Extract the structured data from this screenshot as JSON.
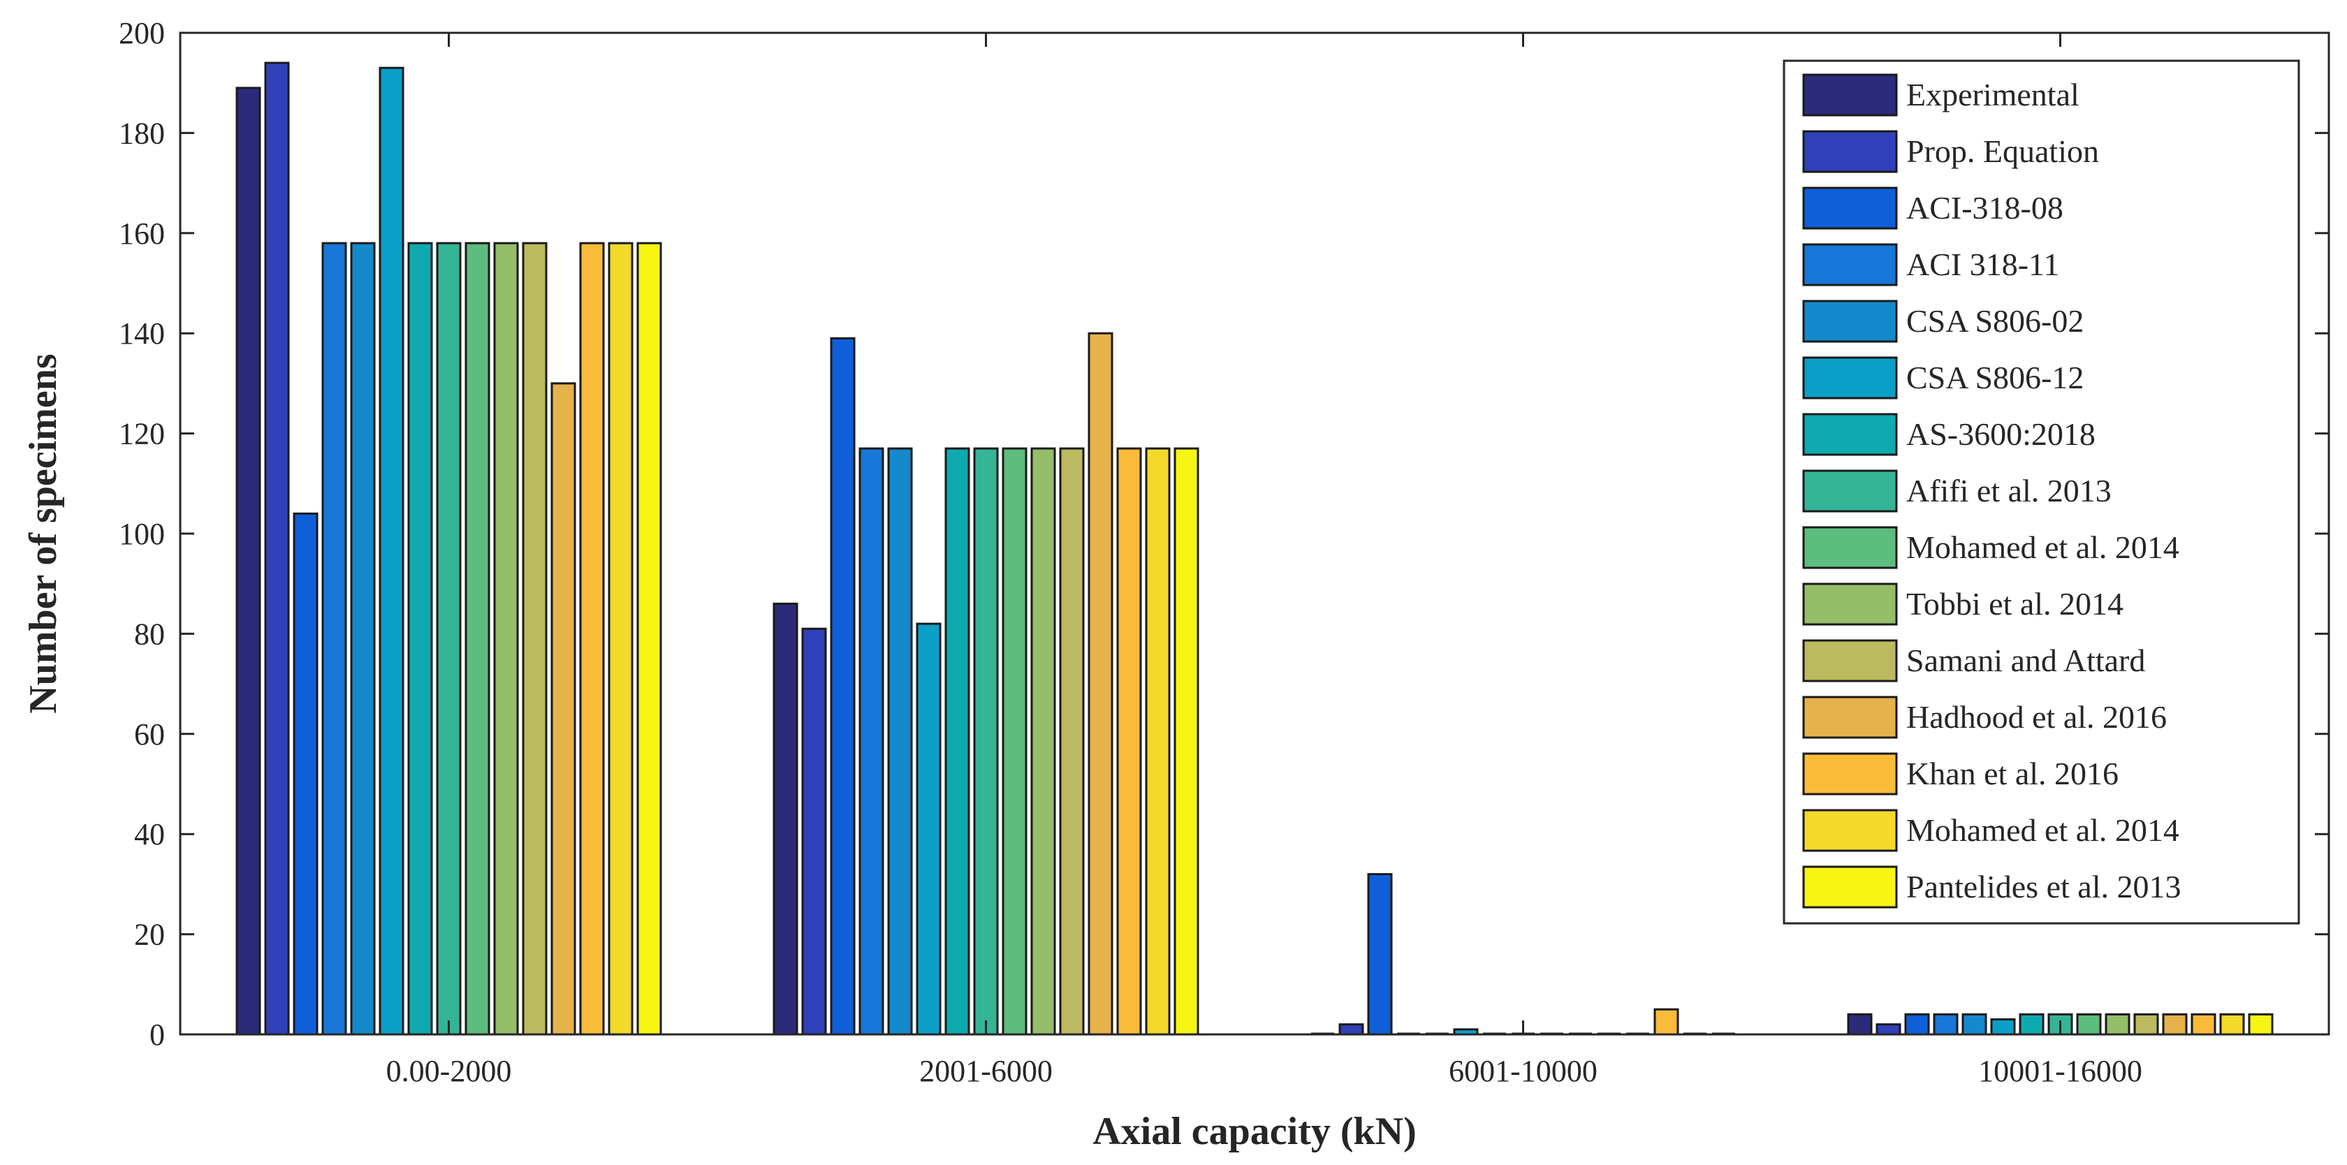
{
  "chart_data": {
    "type": "bar",
    "title": "",
    "xlabel": "Axial capacity (kN)",
    "ylabel": "Number of specimens",
    "ylim": [
      0,
      200
    ],
    "yticks": [
      "0",
      "20",
      "40",
      "60",
      "80",
      "100",
      "120",
      "140",
      "160",
      "180",
      "200"
    ],
    "grid": false,
    "legend_position": "top-right",
    "categories": [
      "0.00-2000",
      "2001-6000",
      "6001-10000",
      "10001-16000"
    ],
    "series": [
      {
        "name": "Experimental",
        "color": "#2b2a7b",
        "values": [
          189,
          86,
          0,
          4
        ]
      },
      {
        "name": "Prop. Equation",
        "color": "#3040b8",
        "values": [
          194,
          81,
          2,
          2
        ]
      },
      {
        "name": "ACI-318-08",
        "color": "#0f5fd8",
        "values": [
          104,
          139,
          32,
          4
        ]
      },
      {
        "name": "ACI 318-11",
        "color": "#1877d8",
        "values": [
          158,
          117,
          0,
          4
        ]
      },
      {
        "name": "CSA S806-02",
        "color": "#1489cc",
        "values": [
          158,
          117,
          0,
          4
        ]
      },
      {
        "name": "CSA S806-12",
        "color": "#0b9fc8",
        "values": [
          193,
          82,
          1,
          3
        ]
      },
      {
        "name": "AS-3600:2018",
        "color": "#0eaab0",
        "values": [
          158,
          117,
          0,
          4
        ]
      },
      {
        "name": "Afifi et al. 2013",
        "color": "#33b596",
        "values": [
          158,
          117,
          0,
          4
        ]
      },
      {
        "name": "Mohamed et al. 2014",
        "color": "#5dbd7e",
        "values": [
          158,
          117,
          0,
          4
        ]
      },
      {
        "name": "Tobbi et al. 2014",
        "color": "#96bd69",
        "values": [
          158,
          117,
          0,
          4
        ]
      },
      {
        "name": "Samani and Attard",
        "color": "#bcba5e",
        "values": [
          158,
          117,
          0,
          4
        ]
      },
      {
        "name": "Hadhood et al. 2016",
        "color": "#e6b24c",
        "values": [
          130,
          140,
          0,
          4
        ]
      },
      {
        "name": "Khan et al. 2016",
        "color": "#fbbb3a",
        "values": [
          158,
          117,
          5,
          4
        ]
      },
      {
        "name": "Mohamed et al. 2014",
        "color": "#f2d92a",
        "values": [
          158,
          117,
          0,
          4
        ]
      },
      {
        "name": "Pantelides et al. 2013",
        "color": "#f7f514",
        "values": [
          158,
          117,
          0,
          4
        ]
      }
    ]
  }
}
